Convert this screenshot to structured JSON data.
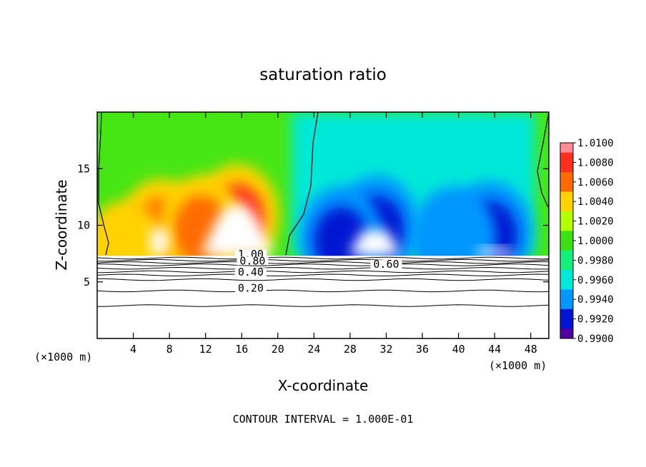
{
  "chart_data": {
    "type": "heatmap",
    "title": "saturation ratio",
    "xlabel": "X-coordinate",
    "ylabel": "Z-coordinate",
    "x_unit_left": "(×1000 m)",
    "x_unit_right": "(×1000 m)",
    "xlim": [
      0,
      50
    ],
    "ylim": [
      0,
      20
    ],
    "x_ticks": [
      4,
      8,
      12,
      16,
      20,
      24,
      28,
      32,
      36,
      40,
      44,
      48
    ],
    "y_ticks": [
      5,
      10,
      15
    ],
    "footer": "CONTOUR INTERVAL = 1.000E-01",
    "colorbar": {
      "ticks": [
        "1.0100",
        "1.0080",
        "1.0060",
        "1.0040",
        "1.0020",
        "1.0000",
        "0.9980",
        "0.9960",
        "0.9940",
        "0.9920",
        "0.9900"
      ],
      "colors": [
        "#ff8c96",
        "#ff3020",
        "#ff6a00",
        "#ffd200",
        "#b4ff00",
        "#3ce014",
        "#14f07a",
        "#00e8d8",
        "#0096ff",
        "#0014d2",
        "#5000a0"
      ]
    },
    "contour_labels": [
      {
        "text": "1.00",
        "x": 17.0,
        "z": 7.2
      },
      {
        "text": "0.80",
        "x": 17.2,
        "z": 6.6
      },
      {
        "text": "0.60",
        "x": 32.0,
        "z": 6.3
      },
      {
        "text": "0.40",
        "x": 17.0,
        "z": 5.6
      },
      {
        "text": "0.20",
        "x": 17.0,
        "z": 4.2
      }
    ],
    "contour_levels_z": [
      7.1,
      6.9,
      6.7,
      6.5,
      6.2,
      5.9,
      5.6,
      5.2,
      4.2,
      2.9
    ],
    "cloud_base_z": 7.3,
    "warm_blobs": [
      {
        "x": 15.5,
        "z": 11.5,
        "value": 1.009
      },
      {
        "x": 7.0,
        "z": 10.2,
        "value": 1.007
      },
      {
        "x": 3.0,
        "z": 8.2,
        "value": 1.005
      },
      {
        "x": 11.5,
        "z": 10.5,
        "value": 1.006
      }
    ],
    "cool_blobs": [
      {
        "x": 31.0,
        "z": 10.5,
        "value": 0.9915
      },
      {
        "x": 27.0,
        "z": 9.5,
        "value": 0.993
      },
      {
        "x": 43.5,
        "z": 10.0,
        "value": 0.9925
      },
      {
        "x": 39.5,
        "z": 9.5,
        "value": 0.995
      }
    ]
  }
}
